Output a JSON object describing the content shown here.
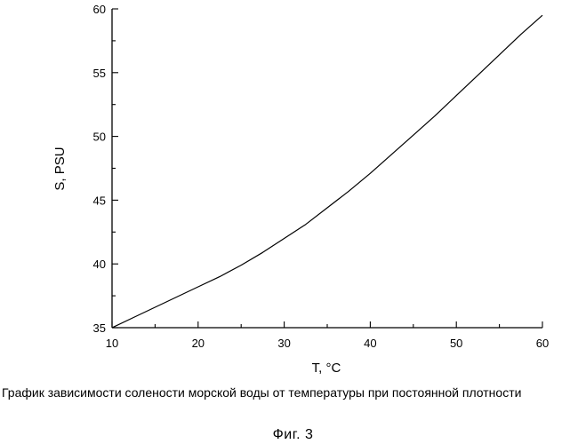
{
  "chart_data": {
    "type": "line",
    "title": "",
    "xlabel": "T, °C",
    "ylabel": "S, PSU",
    "xlim": [
      10,
      60
    ],
    "ylim": [
      35,
      60
    ],
    "x_ticks": [
      10,
      20,
      30,
      40,
      50,
      60
    ],
    "y_ticks": [
      35,
      40,
      45,
      50,
      55,
      60
    ],
    "grid": false,
    "legend": "none",
    "line_color": "#000000",
    "series": [
      {
        "x": [
          10,
          12.5,
          15,
          17.5,
          20,
          22.5,
          25,
          27.5,
          30,
          32.5,
          35,
          37.5,
          40,
          42.5,
          45,
          47.5,
          50,
          52.5,
          55,
          57.5,
          60
        ],
        "values": [
          35.0,
          35.8,
          36.6,
          37.4,
          38.2,
          39.0,
          39.9,
          40.9,
          42.0,
          43.1,
          44.4,
          45.7,
          47.1,
          48.6,
          50.1,
          51.6,
          53.2,
          54.8,
          56.4,
          58.0,
          59.5
        ]
      }
    ]
  },
  "caption": "График зависимости солености морской воды от температуры при постоянной плотности",
  "figure_label": "Фиг.  3"
}
